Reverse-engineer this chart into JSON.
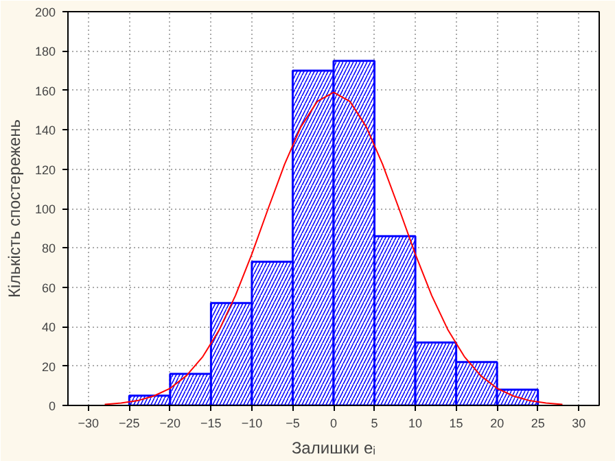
{
  "chart_data": {
    "type": "histogram",
    "xlabel": "Залишки eᵢ",
    "ylabel": "Кількість спостережень",
    "xlim": [
      -32.5,
      32.5
    ],
    "xticks": [
      -30,
      -25,
      -20,
      -15,
      -10,
      -5,
      0,
      5,
      10,
      15,
      20,
      25,
      30
    ],
    "ylim": [
      0,
      200
    ],
    "yticks": [
      0,
      20,
      40,
      60,
      80,
      100,
      120,
      140,
      160,
      180,
      200
    ],
    "grid": true,
    "color": "#0000ff",
    "bins": [
      -25,
      -20,
      -15,
      -10,
      -5,
      0,
      5,
      10,
      15,
      20,
      25
    ],
    "values": [
      5,
      16,
      52,
      73,
      170,
      175,
      86,
      32,
      22,
      8
    ],
    "series": [
      {
        "type": "line",
        "color": "#ff0000",
        "x": [
          -28,
          -26,
          -24,
          -22,
          -20,
          -18,
          -16,
          -14,
          -12,
          -10,
          -8,
          -6,
          -4,
          -2,
          0,
          2,
          4,
          6,
          8,
          10,
          12,
          14,
          16,
          18,
          20,
          22,
          24,
          26,
          28
        ],
        "values": [
          0.5,
          1.2,
          2.4,
          4.8,
          8.7,
          15.1,
          24.8,
          38.3,
          55.9,
          76.9,
          100,
          122.4,
          141.5,
          154.4,
          159,
          154.4,
          141.5,
          122.4,
          100,
          76.9,
          55.9,
          38.3,
          24.8,
          15.1,
          8.7,
          4.8,
          2.4,
          1.2,
          0.5
        ]
      }
    ]
  }
}
